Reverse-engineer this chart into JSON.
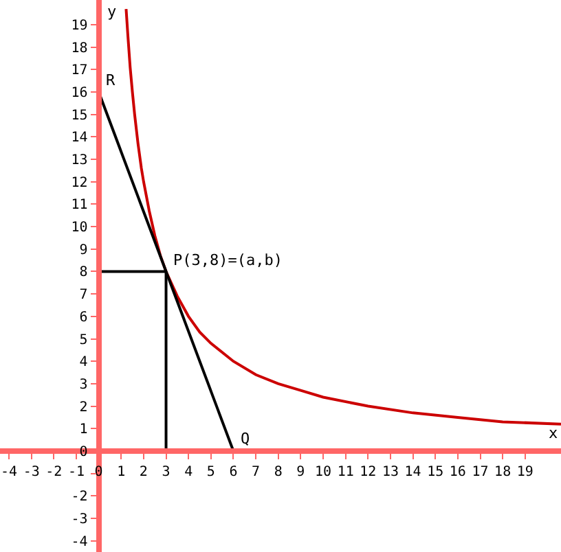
{
  "chart_data": {
    "type": "line",
    "xlabel": "x",
    "ylabel": "y",
    "xlim": [
      -4.4,
      20.6
    ],
    "ylim": [
      -4.5,
      20.1
    ],
    "xticks": [
      -4,
      -3,
      -2,
      -1,
      0,
      1,
      2,
      3,
      4,
      5,
      6,
      7,
      8,
      9,
      10,
      11,
      12,
      13,
      14,
      15,
      16,
      17,
      18,
      19
    ],
    "yticks": [
      -4,
      -3,
      -2,
      {
        "value": -1,
        "label": null
      },
      0,
      1,
      2,
      3,
      4,
      5,
      6,
      7,
      8,
      9,
      10,
      11,
      12,
      13,
      14,
      15,
      16,
      17,
      18,
      19
    ],
    "marker": "none",
    "line_style": "solid",
    "series": [
      {
        "color": "#cc0000",
        "x": [
          1.22,
          1.3,
          1.4,
          1.5,
          1.6,
          1.75,
          1.9,
          2,
          2.25,
          2.5,
          2.75,
          3,
          3.5,
          4,
          4.5,
          5,
          6,
          7,
          8,
          9,
          10,
          12,
          14,
          16,
          18,
          20.6
        ],
        "values": [
          19.7,
          18.5,
          17.1,
          16,
          15,
          13.7,
          12.6,
          12,
          10.7,
          9.6,
          8.7,
          8,
          6.9,
          6,
          5.3,
          4.8,
          4,
          3.4,
          3,
          2.7,
          2.4,
          2,
          1.7,
          1.5,
          1.3,
          1.2
        ]
      },
      {
        "color": "#000000",
        "x": [
          0,
          6
        ],
        "values": [
          16,
          0
        ]
      },
      {
        "color": "#000000",
        "x": [
          3,
          3
        ],
        "values": [
          0,
          8
        ]
      },
      {
        "color": "#000000",
        "x": [
          0,
          3
        ],
        "values": [
          8,
          8
        ]
      }
    ],
    "annotations": [
      {
        "text": "R",
        "x": 0,
        "y": 16
      },
      {
        "text": "Q",
        "x": 6,
        "y": 0
      },
      {
        "text": "P(3,8)=(a,b)",
        "x": 3,
        "y": 8
      }
    ]
  }
}
